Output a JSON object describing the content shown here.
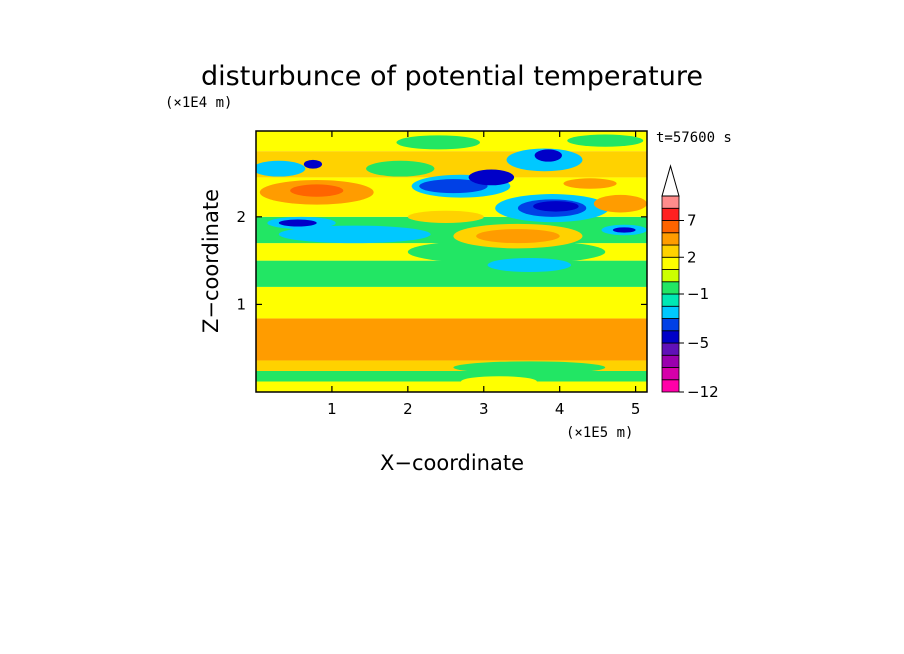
{
  "chart_data": {
    "type": "heatmap",
    "title": "disturbunce of potential temperature",
    "xlabel": "X−coordinate",
    "ylabel": "Z−coordinate",
    "x_unit": "(×1E5 m)",
    "y_unit": "(×1E4 m)",
    "time_label": "t=57600 s",
    "xlim": [
      0,
      5.15
    ],
    "ylim": [
      0,
      2.98
    ],
    "x_ticks": [
      1,
      2,
      3,
      4,
      5
    ],
    "x_tick_labels": [
      "1",
      "2",
      "3",
      "4",
      "5"
    ],
    "y_ticks": [
      1,
      2
    ],
    "y_tick_labels": [
      "1",
      "2"
    ],
    "colorbar": {
      "levels": [
        -12,
        -10,
        -8,
        -6,
        -5,
        -4,
        -3,
        -2,
        -1,
        0,
        1,
        2,
        3,
        5,
        7,
        9,
        11
      ],
      "colors": [
        "#ff00a8",
        "#d600aa",
        "#9a00ae",
        "#6010b8",
        "#0000c8",
        "#0040e6",
        "#00c8ff",
        "#00e8b4",
        "#22e664",
        "#ccff00",
        "#ffff00",
        "#ffd200",
        "#ff9c00",
        "#ff6400",
        "#ff2020",
        "#ff8c8c",
        "#ffc4c4",
        "#ffffff"
      ],
      "tick_values": [
        -12,
        -5,
        -1,
        2,
        7
      ],
      "tick_labels": [
        "−12",
        "−5",
        "−1",
        "2",
        "7"
      ],
      "extend": "max"
    },
    "bands": [
      {
        "z0": 0.0,
        "z1": 0.12,
        "color": "#ffff00"
      },
      {
        "z0": 0.12,
        "z1": 0.24,
        "color": "#22e664"
      },
      {
        "z0": 0.24,
        "z1": 0.36,
        "color": "#ffd200"
      },
      {
        "z0": 0.36,
        "z1": 0.84,
        "color": "#ff9c00"
      },
      {
        "z0": 0.84,
        "z1": 1.2,
        "color": "#ffff00"
      },
      {
        "z0": 1.2,
        "z1": 1.5,
        "color": "#22e664"
      },
      {
        "z0": 1.5,
        "z1": 1.7,
        "color": "#ffff00"
      },
      {
        "z0": 1.7,
        "z1": 2.0,
        "color": "#22e664"
      },
      {
        "z0": 2.0,
        "z1": 2.45,
        "color": "#ffff00"
      },
      {
        "z0": 2.45,
        "z1": 2.75,
        "color": "#ffd200"
      },
      {
        "z0": 2.75,
        "z1": 2.98,
        "color": "#ffff00"
      }
    ],
    "features": [
      {
        "x": 0.85,
        "z": 0.55,
        "rx": 0.85,
        "rz": 0.18,
        "color": "#ff9c00"
      },
      {
        "x": 3.5,
        "z": 0.64,
        "rx": 0.7,
        "rz": 0.07,
        "color": "#ff9c00"
      },
      {
        "x": 3.6,
        "z": 0.28,
        "rx": 1.0,
        "rz": 0.07,
        "color": "#22e664"
      },
      {
        "x": 3.2,
        "z": 0.12,
        "rx": 0.5,
        "rz": 0.06,
        "color": "#ffff00"
      },
      {
        "x": 3.3,
        "z": 1.6,
        "rx": 1.3,
        "rz": 0.14,
        "color": "#22e664"
      },
      {
        "x": 3.6,
        "z": 1.45,
        "rx": 0.55,
        "rz": 0.08,
        "color": "#00c8ff"
      },
      {
        "x": 3.45,
        "z": 1.78,
        "rx": 0.85,
        "rz": 0.14,
        "color": "#ffd200"
      },
      {
        "x": 3.45,
        "z": 1.78,
        "rx": 0.55,
        "rz": 0.08,
        "color": "#ff9c00"
      },
      {
        "x": 1.3,
        "z": 1.8,
        "rx": 1.0,
        "rz": 0.1,
        "color": "#00c8ff"
      },
      {
        "x": 0.6,
        "z": 1.93,
        "rx": 0.45,
        "rz": 0.07,
        "color": "#00c8ff"
      },
      {
        "x": 0.55,
        "z": 1.93,
        "rx": 0.25,
        "rz": 0.04,
        "color": "#0000c8"
      },
      {
        "x": 4.85,
        "z": 1.85,
        "rx": 0.3,
        "rz": 0.06,
        "color": "#00c8ff"
      },
      {
        "x": 4.85,
        "z": 1.85,
        "rx": 0.15,
        "rz": 0.03,
        "color": "#0000c8"
      },
      {
        "x": 2.5,
        "z": 2.0,
        "rx": 0.5,
        "rz": 0.07,
        "color": "#ffd200"
      },
      {
        "x": 3.9,
        "z": 2.1,
        "rx": 0.75,
        "rz": 0.16,
        "color": "#00c8ff"
      },
      {
        "x": 3.9,
        "z": 2.1,
        "rx": 0.45,
        "rz": 0.1,
        "color": "#0040e6"
      },
      {
        "x": 3.95,
        "z": 2.12,
        "rx": 0.3,
        "rz": 0.06,
        "color": "#0000c8"
      },
      {
        "x": 4.8,
        "z": 2.15,
        "rx": 0.35,
        "rz": 0.1,
        "color": "#ff9c00"
      },
      {
        "x": 0.8,
        "z": 2.28,
        "rx": 0.75,
        "rz": 0.14,
        "color": "#ff9c00"
      },
      {
        "x": 0.8,
        "z": 2.3,
        "rx": 0.35,
        "rz": 0.07,
        "color": "#ff6400"
      },
      {
        "x": 2.7,
        "z": 2.35,
        "rx": 0.65,
        "rz": 0.13,
        "color": "#00c8ff"
      },
      {
        "x": 2.6,
        "z": 2.35,
        "rx": 0.45,
        "rz": 0.08,
        "color": "#0040e6"
      },
      {
        "x": 3.1,
        "z": 2.45,
        "rx": 0.3,
        "rz": 0.09,
        "color": "#0000c8"
      },
      {
        "x": 4.4,
        "z": 2.38,
        "rx": 0.35,
        "rz": 0.06,
        "color": "#ff9c00"
      },
      {
        "x": 0.3,
        "z": 2.55,
        "rx": 0.35,
        "rz": 0.09,
        "color": "#00c8ff"
      },
      {
        "x": 1.9,
        "z": 2.55,
        "rx": 0.45,
        "rz": 0.09,
        "color": "#22e664"
      },
      {
        "x": 3.8,
        "z": 2.65,
        "rx": 0.5,
        "rz": 0.13,
        "color": "#00c8ff"
      },
      {
        "x": 3.85,
        "z": 2.7,
        "rx": 0.18,
        "rz": 0.07,
        "color": "#0000c8"
      },
      {
        "x": 0.75,
        "z": 2.6,
        "rx": 0.12,
        "rz": 0.05,
        "color": "#0000c8"
      },
      {
        "x": 2.4,
        "z": 2.85,
        "rx": 0.55,
        "rz": 0.08,
        "color": "#22e664"
      },
      {
        "x": 4.6,
        "z": 2.87,
        "rx": 0.5,
        "rz": 0.07,
        "color": "#22e664"
      }
    ]
  }
}
